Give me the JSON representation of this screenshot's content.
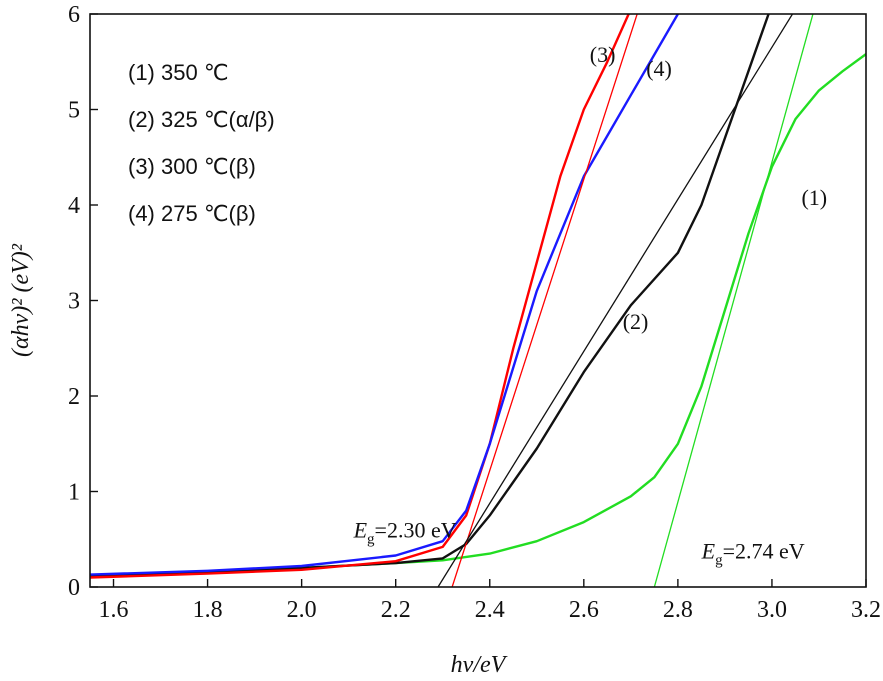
{
  "chart_data": {
    "type": "line",
    "xlabel": "hν/eV",
    "ylabel": "(αhν)² (eV)²",
    "xlim": [
      1.55,
      3.2
    ],
    "ylim": [
      0,
      6
    ],
    "x_ticks": [
      "1.6",
      "1.8",
      "2.0",
      "2.2",
      "2.4",
      "2.6",
      "2.8",
      "3.0",
      "3.2"
    ],
    "y_ticks": [
      "0",
      "1",
      "2",
      "3",
      "4",
      "5",
      "6"
    ],
    "grid": false,
    "legend_position": "top-left",
    "legend": [
      "(1) 350 ℃",
      "(2) 325 ℃(α/β)",
      "(3) 300 ℃(β)",
      "(4) 275 ℃(β)"
    ],
    "series": [
      {
        "label": "(1)",
        "color": "#22dd22",
        "points": [
          [
            1.55,
            0.12
          ],
          [
            1.8,
            0.16
          ],
          [
            2.0,
            0.2
          ],
          [
            2.2,
            0.25
          ],
          [
            2.3,
            0.28
          ],
          [
            2.4,
            0.35
          ],
          [
            2.5,
            0.48
          ],
          [
            2.6,
            0.68
          ],
          [
            2.7,
            0.95
          ],
          [
            2.75,
            1.15
          ],
          [
            2.8,
            1.5
          ],
          [
            2.85,
            2.1
          ],
          [
            2.9,
            2.9
          ],
          [
            2.95,
            3.7
          ],
          [
            3.0,
            4.4
          ],
          [
            3.05,
            4.9
          ],
          [
            3.1,
            5.2
          ],
          [
            3.15,
            5.4
          ],
          [
            3.2,
            5.58
          ]
        ]
      },
      {
        "label": "(2)",
        "color": "#111111",
        "points": [
          [
            1.55,
            0.12
          ],
          [
            1.8,
            0.16
          ],
          [
            2.0,
            0.2
          ],
          [
            2.2,
            0.25
          ],
          [
            2.3,
            0.3
          ],
          [
            2.35,
            0.45
          ],
          [
            2.4,
            0.75
          ],
          [
            2.5,
            1.45
          ],
          [
            2.6,
            2.25
          ],
          [
            2.7,
            2.95
          ],
          [
            2.8,
            3.5
          ],
          [
            2.85,
            4.0
          ],
          [
            2.9,
            4.7
          ],
          [
            2.95,
            5.4
          ],
          [
            3.0,
            6.1
          ]
        ]
      },
      {
        "label": "(3)",
        "color": "#ff0000",
        "points": [
          [
            1.55,
            0.1
          ],
          [
            1.8,
            0.14
          ],
          [
            2.0,
            0.18
          ],
          [
            2.2,
            0.27
          ],
          [
            2.3,
            0.42
          ],
          [
            2.35,
            0.75
          ],
          [
            2.4,
            1.5
          ],
          [
            2.45,
            2.5
          ],
          [
            2.5,
            3.4
          ],
          [
            2.55,
            4.3
          ],
          [
            2.6,
            5.0
          ],
          [
            2.65,
            5.5
          ],
          [
            2.7,
            6.05
          ]
        ]
      },
      {
        "label": "(4)",
        "color": "#1a1aff",
        "points": [
          [
            1.55,
            0.13
          ],
          [
            1.8,
            0.17
          ],
          [
            2.0,
            0.22
          ],
          [
            2.2,
            0.33
          ],
          [
            2.3,
            0.48
          ],
          [
            2.35,
            0.8
          ],
          [
            2.4,
            1.5
          ],
          [
            2.45,
            2.3
          ],
          [
            2.5,
            3.1
          ],
          [
            2.6,
            4.3
          ],
          [
            2.7,
            5.15
          ],
          [
            2.8,
            6.0
          ]
        ]
      }
    ],
    "tangent_lines": [
      {
        "color": "#ff0000",
        "points": [
          [
            2.32,
            0
          ],
          [
            2.72,
            6.1
          ]
        ]
      },
      {
        "color": "#111111",
        "points": [
          [
            2.29,
            0
          ],
          [
            3.05,
            6.05
          ]
        ]
      },
      {
        "color": "#22dd22",
        "points": [
          [
            2.75,
            0
          ],
          [
            3.09,
            6.05
          ]
        ]
      }
    ],
    "curve_labels": [
      {
        "text": "(3)",
        "x": 2.64,
        "y": 5.5
      },
      {
        "text": "(4)",
        "x": 2.76,
        "y": 5.35
      },
      {
        "text": "(2)",
        "x": 2.71,
        "y": 2.7
      },
      {
        "text": "(1)",
        "x": 3.09,
        "y": 4.0
      }
    ],
    "annotations": [
      {
        "prefix": "E",
        "sub": "g",
        "value": "=2.30 eV",
        "x": 2.22,
        "y": 0.52
      },
      {
        "prefix": "E",
        "sub": "g",
        "value": "=2.74 eV",
        "x": 2.96,
        "y": 0.3
      }
    ]
  }
}
